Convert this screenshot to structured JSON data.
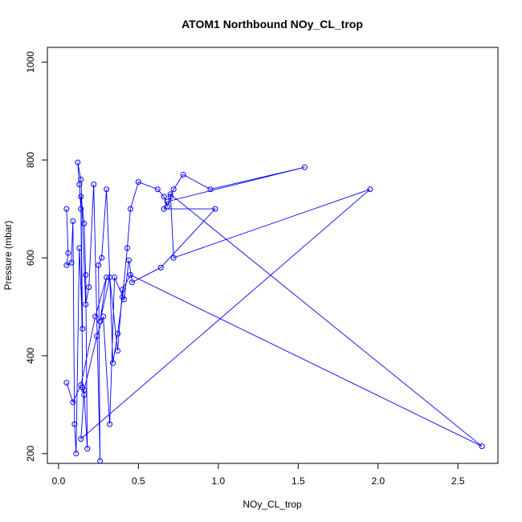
{
  "chart_data": {
    "type": "line",
    "title": "ATOM1 Northbound NOy_CL_trop",
    "xlabel": "NOy_CL_trop",
    "ylabel": "Pressure (mbar)",
    "xlim": [
      -0.07,
      2.75
    ],
    "ylim": [
      1030,
      180
    ],
    "y_reversed": true,
    "x_ticks": [
      "0.0",
      "0.5",
      "1.0",
      "1.5",
      "2.0",
      "2.5"
    ],
    "y_ticks": [
      "200",
      "400",
      "600",
      "800",
      "1000"
    ],
    "x_tick_values": [
      0,
      0.5,
      1.0,
      1.5,
      2.0,
      2.5
    ],
    "y_tick_values": [
      200,
      400,
      600,
      800,
      1000
    ],
    "grid": false,
    "series": [
      {
        "color": "#0000ff",
        "marker": "open-circle",
        "x": [
          0.05,
          0.06,
          0.05,
          0.08,
          0.09,
          0.1,
          0.11,
          0.13,
          0.15,
          0.14,
          0.16,
          0.17,
          0.18,
          0.16,
          0.15,
          0.14,
          0.13,
          0.12,
          0.14,
          0.17,
          0.19,
          0.22,
          0.26,
          0.25,
          0.27,
          0.3,
          0.34,
          0.37,
          0.4,
          0.43,
          0.45,
          0.5,
          0.62,
          0.66,
          0.68,
          0.7,
          0.72,
          0.78,
          0.95,
          1.54,
          0.68,
          0.66,
          0.98,
          0.64,
          0.46,
          0.44,
          0.41,
          0.35,
          0.32,
          0.28,
          0.24,
          0.16,
          0.14,
          1.95,
          0.72,
          0.7,
          2.65,
          0.45,
          0.4,
          0.37,
          0.32,
          0.26,
          0.3,
          0.23,
          0.14,
          0.09,
          0.05
        ],
        "y": [
          700,
          610,
          585,
          590,
          675,
          260,
          200,
          620,
          455,
          725,
          670,
          565,
          210,
          320,
          335,
          700,
          750,
          795,
          760,
          505,
          540,
          750,
          185,
          585,
          600,
          740,
          385,
          445,
          520,
          620,
          700,
          755,
          740,
          725,
          705,
          725,
          740,
          770,
          740,
          785,
          715,
          700,
          700,
          580,
          550,
          595,
          515,
          560,
          260,
          480,
          440,
          330,
          230,
          740,
          600,
          730,
          215,
          565,
          535,
          410,
          560,
          470,
          560,
          480,
          340,
          305,
          345
        ]
      }
    ]
  }
}
